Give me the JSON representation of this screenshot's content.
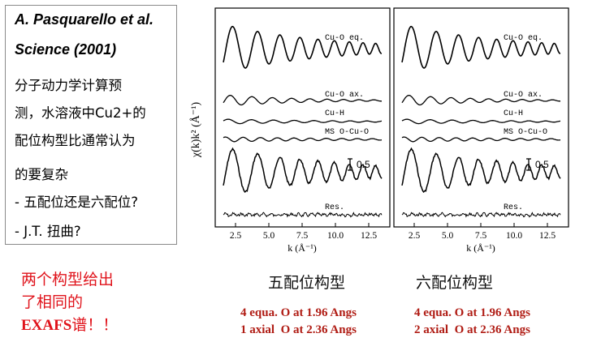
{
  "reference": {
    "line1": "A. Pasquarello et al.",
    "line2": "Science (2001)"
  },
  "notes": [
    "分子动力学计算预",
    "测，水溶液中Cu2+的",
    "配位构型比通常认为",
    "的要复杂",
    "- 五配位还是六配位?",
    "- J.T. 扭曲?"
  ],
  "conclusion": {
    "line1": "两个构型给出",
    "line2": "了相同的",
    "line3_bold": "EXAFS",
    "line3_rest": "谱！！"
  },
  "figure": {
    "ylabel": "χ(k)k² (Å⁻¹)",
    "xlabel": "k (Å⁻¹)",
    "xticks": [
      "2.5",
      "5.0",
      "7.5",
      "10.0",
      "12.5"
    ],
    "scale_bar_label": "0.5",
    "curve_labels": [
      "Cu-O eq.",
      "Cu-O ax.",
      "Cu-H",
      "MS O-Cu-O",
      "Res."
    ],
    "line_color": "#000000"
  },
  "captions": {
    "five_coord": "五配位构型",
    "six_coord": "六配位构型"
  },
  "models": {
    "five_line1": "4 equa. O at 1.96 Angs",
    "five_line2": "1 axial  O at 2.36 Angs",
    "six_line1": "4 equa. O at 1.96 Angs",
    "six_line2": "2 axial  O at 2.36 Angs",
    "color": "#b01c14"
  }
}
